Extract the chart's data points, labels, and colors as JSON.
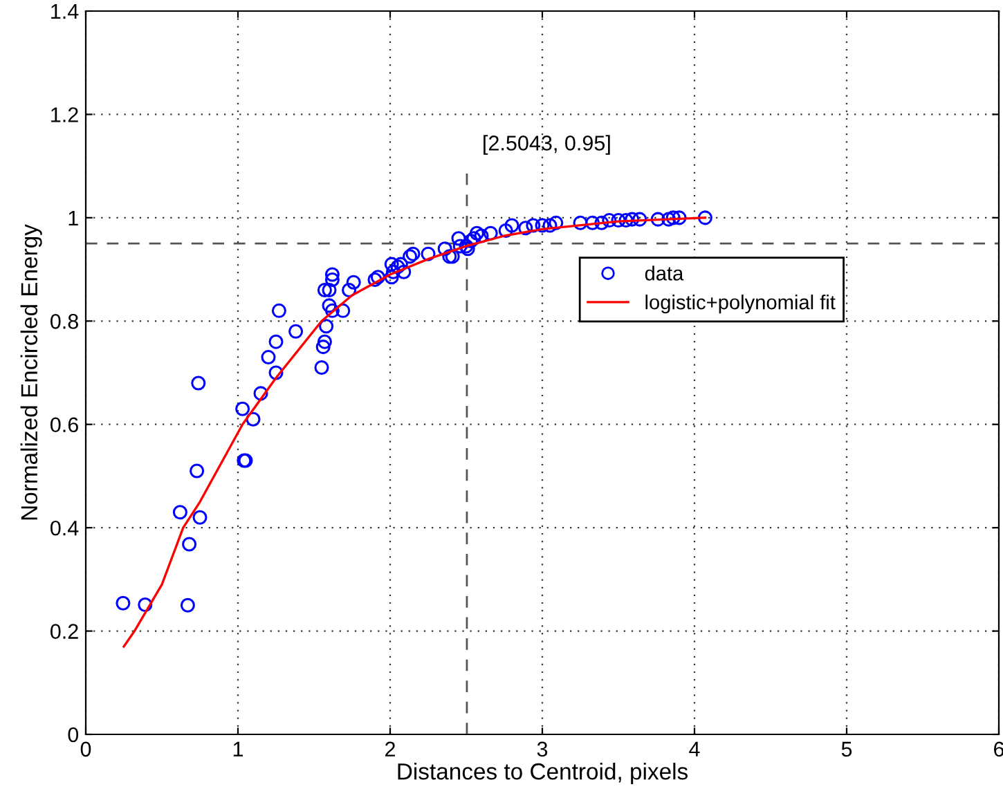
{
  "chart_data": {
    "type": "scatter",
    "xlabel": "Distances to Centroid, pixels",
    "ylabel": "Normalized Encircled Energy",
    "xlim": [
      0,
      6
    ],
    "ylim": [
      0,
      1.4
    ],
    "xticks": [
      0,
      1,
      2,
      3,
      4,
      5,
      6
    ],
    "yticks": [
      0,
      0.2,
      0.4,
      0.6,
      0.8,
      1,
      1.2,
      1.4
    ],
    "grid": true,
    "legend": "right",
    "marker": "circle",
    "series": [
      {
        "name": "data",
        "color": "#0000ff",
        "x": [
          0.245,
          0.39,
          0.67,
          0.68,
          0.62,
          0.75,
          0.73,
          0.74,
          1.04,
          1.05,
          1.03,
          1.1,
          1.15,
          1.2,
          1.25,
          1.25,
          1.27,
          1.38,
          1.55,
          1.56,
          1.57,
          1.58,
          1.62,
          1.6,
          1.6,
          1.62,
          1.62,
          1.57,
          1.69,
          1.73,
          1.76,
          1.9,
          1.92,
          2.01,
          2.02,
          2.05,
          2.01,
          2.09,
          2.07,
          2.13,
          2.15,
          2.25,
          2.36,
          2.39,
          2.41,
          2.46,
          2.45,
          2.51,
          2.5,
          2.53,
          2.55,
          2.57,
          2.6,
          2.66,
          2.76,
          2.8,
          2.89,
          2.94,
          3.0,
          3.05,
          3.09,
          3.25,
          3.33,
          3.39,
          3.44,
          3.5,
          3.55,
          3.59,
          3.64,
          3.76,
          3.83,
          3.86,
          3.9,
          4.07
        ],
        "values": [
          0.254,
          0.251,
          0.25,
          0.368,
          0.43,
          0.42,
          0.51,
          0.68,
          0.53,
          0.53,
          0.63,
          0.61,
          0.66,
          0.73,
          0.7,
          0.76,
          0.82,
          0.78,
          0.71,
          0.75,
          0.76,
          0.79,
          0.82,
          0.83,
          0.86,
          0.88,
          0.89,
          0.86,
          0.82,
          0.86,
          0.875,
          0.88,
          0.885,
          0.885,
          0.895,
          0.905,
          0.91,
          0.895,
          0.91,
          0.925,
          0.93,
          0.93,
          0.94,
          0.925,
          0.925,
          0.945,
          0.96,
          0.94,
          0.945,
          0.955,
          0.96,
          0.97,
          0.965,
          0.97,
          0.975,
          0.985,
          0.98,
          0.985,
          0.985,
          0.985,
          0.99,
          0.99,
          0.99,
          0.99,
          0.995,
          0.995,
          0.995,
          0.997,
          0.997,
          0.997,
          0.997,
          1.0,
          1.0,
          1.0
        ]
      },
      {
        "name": "logistic+polynomial fit",
        "type": "line",
        "color": "#ff0000",
        "line_style": "solid",
        "marker": "none",
        "x": [
          0.25,
          0.32,
          0.5,
          0.64,
          0.75,
          1.03,
          1.25,
          1.55,
          1.75,
          2.0,
          2.25,
          2.5,
          2.75,
          3.0,
          3.5,
          4.07
        ],
        "values": [
          0.17,
          0.2,
          0.29,
          0.4,
          0.45,
          0.6,
          0.69,
          0.8,
          0.85,
          0.89,
          0.92,
          0.945,
          0.965,
          0.978,
          0.993,
          1.0
        ]
      }
    ],
    "ref_lines": [
      {
        "axis": "x",
        "value": 2.5043,
        "line_style": "dashed",
        "color": "#555555"
      },
      {
        "axis": "y",
        "value": 0.95,
        "line_style": "dashed",
        "color": "#555555"
      }
    ],
    "annotations": [
      "[2.5043, 0.95]"
    ]
  }
}
